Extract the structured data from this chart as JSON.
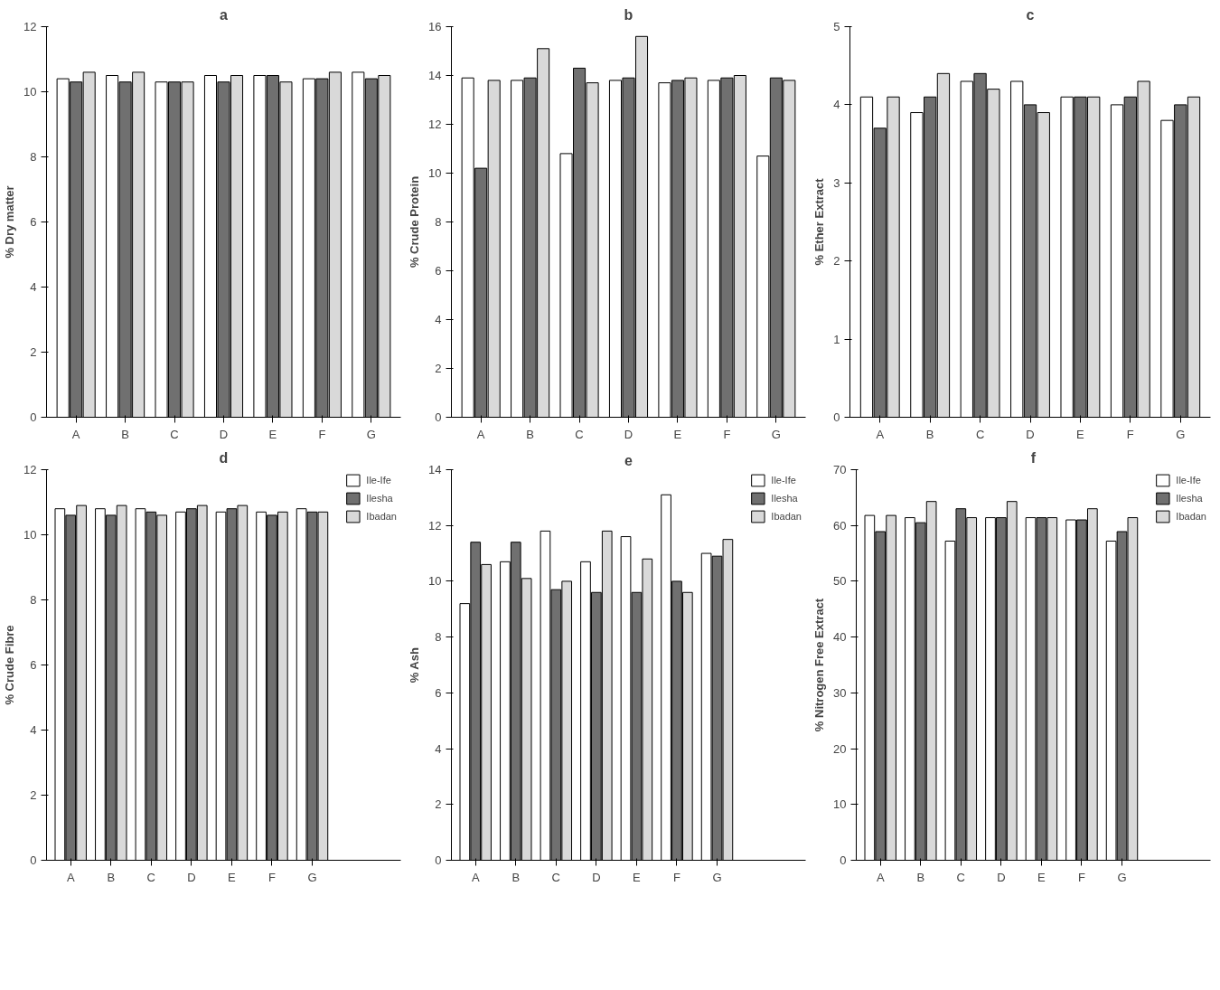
{
  "chart_data": [
    {
      "type": "bar",
      "title": "a",
      "ylabel": "% Dry matter",
      "categories": [
        "A",
        "B",
        "C",
        "D",
        "E",
        "F",
        "G"
      ],
      "ylim": [
        0,
        12
      ],
      "yticks": [
        0,
        2,
        4,
        6,
        8,
        10,
        12
      ],
      "grid": false,
      "legend": false,
      "series": [
        {
          "color": "#ffffff",
          "values": [
            10.4,
            10.5,
            10.3,
            10.5,
            10.5,
            10.4,
            10.6
          ]
        },
        {
          "color": "#707070",
          "values": [
            10.3,
            10.3,
            10.3,
            10.3,
            10.5,
            10.4,
            10.4
          ]
        },
        {
          "color": "#d9d9d9",
          "values": [
            10.6,
            10.6,
            10.3,
            10.5,
            10.3,
            10.6,
            10.5
          ]
        }
      ]
    },
    {
      "type": "bar",
      "title": "b",
      "ylabel": "% Crude Protein",
      "categories": [
        "A",
        "B",
        "C",
        "D",
        "E",
        "F",
        "G"
      ],
      "ylim": [
        0,
        16
      ],
      "yticks": [
        0,
        2,
        4,
        6,
        8,
        10,
        12,
        14,
        16
      ],
      "grid": false,
      "legend": false,
      "series": [
        {
          "color": "#ffffff",
          "values": [
            13.9,
            13.8,
            10.8,
            13.8,
            13.7,
            13.8,
            10.7
          ]
        },
        {
          "color": "#707070",
          "values": [
            10.2,
            13.9,
            14.3,
            13.9,
            13.8,
            13.9,
            13.9
          ]
        },
        {
          "color": "#d9d9d9",
          "values": [
            13.8,
            15.1,
            13.7,
            15.6,
            13.9,
            14.0,
            13.8
          ]
        }
      ]
    },
    {
      "type": "bar",
      "title": "c",
      "ylabel": "% Ether Extract",
      "categories": [
        "A",
        "B",
        "C",
        "D",
        "E",
        "F",
        "G"
      ],
      "ylim": [
        0,
        5
      ],
      "yticks": [
        0,
        1,
        2,
        3,
        4,
        5
      ],
      "grid": false,
      "legend": false,
      "series": [
        {
          "color": "#ffffff",
          "values": [
            4.1,
            3.9,
            4.3,
            4.3,
            4.1,
            4.0,
            3.8
          ]
        },
        {
          "color": "#707070",
          "values": [
            3.7,
            4.1,
            4.4,
            4.0,
            4.1,
            4.1,
            4.0
          ]
        },
        {
          "color": "#d9d9d9",
          "values": [
            4.1,
            4.4,
            4.2,
            3.9,
            4.1,
            4.3,
            4.1
          ]
        }
      ]
    },
    {
      "type": "bar",
      "title": "d",
      "ylabel": "% Crude Fibre",
      "categories": [
        "A",
        "B",
        "C",
        "D",
        "E",
        "F",
        "G"
      ],
      "ylim": [
        0,
        12
      ],
      "yticks": [
        0,
        2,
        4,
        6,
        8,
        10,
        12
      ],
      "grid": false,
      "legend": "right",
      "series": [
        {
          "name": "Ile-Ife",
          "color": "#ffffff",
          "values": [
            10.8,
            10.8,
            10.8,
            10.7,
            10.7,
            10.7,
            10.8
          ]
        },
        {
          "name": "Ilesha",
          "color": "#707070",
          "values": [
            10.6,
            10.6,
            10.7,
            10.8,
            10.8,
            10.6,
            10.7
          ]
        },
        {
          "name": "Ibadan",
          "color": "#d9d9d9",
          "values": [
            10.9,
            10.9,
            10.6,
            10.9,
            10.9,
            10.7,
            10.7
          ]
        }
      ]
    },
    {
      "type": "bar",
      "title": "e",
      "ylabel": "% Ash",
      "categories": [
        "A",
        "B",
        "C",
        "D",
        "E",
        "F",
        "G"
      ],
      "ylim": [
        0,
        14
      ],
      "yticks": [
        0,
        2,
        4,
        6,
        8,
        10,
        12,
        14
      ],
      "grid": false,
      "legend": "right",
      "series": [
        {
          "name": "Ile-Ife",
          "color": "#ffffff",
          "values": [
            9.2,
            10.7,
            11.8,
            10.7,
            11.6,
            13.1,
            11.0
          ]
        },
        {
          "name": "Ilesha",
          "color": "#707070",
          "values": [
            11.4,
            11.4,
            9.7,
            9.6,
            9.6,
            10.0,
            10.9
          ]
        },
        {
          "name": "Ibadan",
          "color": "#d9d9d9",
          "values": [
            10.6,
            10.1,
            10.0,
            11.8,
            10.8,
            9.6,
            11.5
          ]
        }
      ]
    },
    {
      "type": "bar",
      "title": "f",
      "ylabel": "% Nitrogen Free Extract",
      "categories": [
        "A",
        "B",
        "C",
        "D",
        "E",
        "F",
        "G"
      ],
      "ylim": [
        0,
        70
      ],
      "yticks": [
        0,
        10,
        20,
        30,
        40,
        50,
        60,
        70
      ],
      "grid": false,
      "legend": "right",
      "series": [
        {
          "name": "Ile-Ife",
          "color": "#ffffff",
          "values": [
            61.8,
            61.4,
            57.2,
            61.4,
            61.4,
            61.0,
            57.2
          ]
        },
        {
          "name": "Ilesha",
          "color": "#707070",
          "values": [
            58.9,
            60.5,
            63.0,
            61.4,
            61.4,
            61.0,
            58.9
          ]
        },
        {
          "name": "Ibadan",
          "color": "#d9d9d9",
          "values": [
            61.8,
            64.3,
            61.4,
            64.3,
            61.4,
            63.0,
            61.4
          ]
        }
      ]
    }
  ]
}
